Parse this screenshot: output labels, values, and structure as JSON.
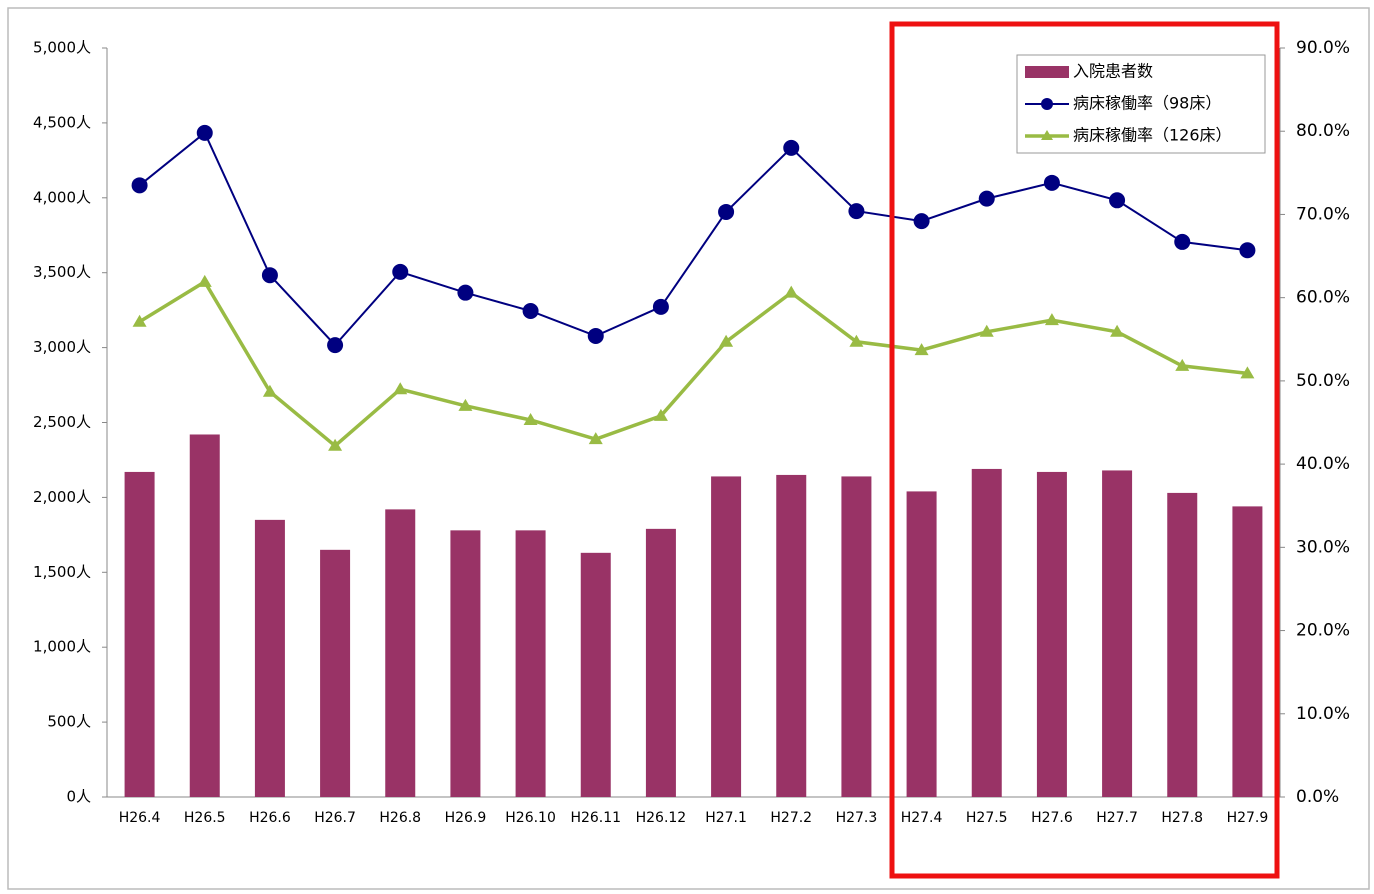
{
  "chart_data": {
    "type": "bar",
    "categories": [
      "H26.4",
      "H26.5",
      "H26.6",
      "H26.7",
      "H26.8",
      "H26.9",
      "H26.10",
      "H26.11",
      "H26.12",
      "H27.1",
      "H27.2",
      "H27.3",
      "H27.4",
      "H27.5",
      "H27.6",
      "H27.7",
      "H27.8",
      "H27.9"
    ],
    "series": [
      {
        "name": "入院患者数",
        "type": "bar",
        "color": "#993366",
        "values": [
          2170,
          2420,
          1850,
          1650,
          1920,
          1780,
          1780,
          1630,
          1790,
          2140,
          2150,
          2140,
          2040,
          2190,
          2170,
          2180,
          2030,
          1940
        ]
      },
      {
        "name": "病床稼働率（98床）",
        "type": "line",
        "axis": "y2",
        "color": "#000080",
        "marker": "circle",
        "values": [
          73.5,
          79.8,
          62.7,
          54.3,
          63.1,
          60.6,
          58.4,
          55.4,
          58.9,
          70.3,
          78.0,
          70.4,
          69.2,
          71.9,
          73.8,
          71.7,
          66.7,
          65.7
        ]
      },
      {
        "name": "病床稼働率（126床）",
        "type": "line",
        "axis": "y2",
        "color": "#99bb44",
        "marker": "triangle",
        "values": [
          57.1,
          61.9,
          48.7,
          42.2,
          49.0,
          47.0,
          45.3,
          43.0,
          45.8,
          54.7,
          60.6,
          54.7,
          53.7,
          55.9,
          57.3,
          55.9,
          51.8,
          50.9
        ]
      }
    ],
    "ylim": [
      0,
      5000
    ],
    "yticks": [
      {
        "value": 0,
        "label": "0人"
      },
      {
        "value": 500,
        "label": "500人"
      },
      {
        "value": 1000,
        "label": "1,000人"
      },
      {
        "value": 1500,
        "label": "1,500人"
      },
      {
        "value": 2000,
        "label": "2,000人"
      },
      {
        "value": 2500,
        "label": "2,500人"
      },
      {
        "value": 3000,
        "label": "3,000人"
      },
      {
        "value": 3500,
        "label": "3,500人"
      },
      {
        "value": 4000,
        "label": "4,000人"
      },
      {
        "value": 4500,
        "label": "4,500人"
      },
      {
        "value": 5000,
        "label": "5,000人"
      }
    ],
    "y2lim": [
      0,
      90
    ],
    "y2ticks": [
      {
        "value": 0,
        "label": "0.0%"
      },
      {
        "value": 10,
        "label": "10.0%"
      },
      {
        "value": 20,
        "label": "20.0%"
      },
      {
        "value": 30,
        "label": "30.0%"
      },
      {
        "value": 40,
        "label": "40.0%"
      },
      {
        "value": 50,
        "label": "50.0%"
      },
      {
        "value": 60,
        "label": "60.0%"
      },
      {
        "value": 70,
        "label": "70.0%"
      },
      {
        "value": 80,
        "label": "80.0%"
      },
      {
        "value": 90,
        "label": "90.0%"
      }
    ],
    "legend": "top-right"
  }
}
